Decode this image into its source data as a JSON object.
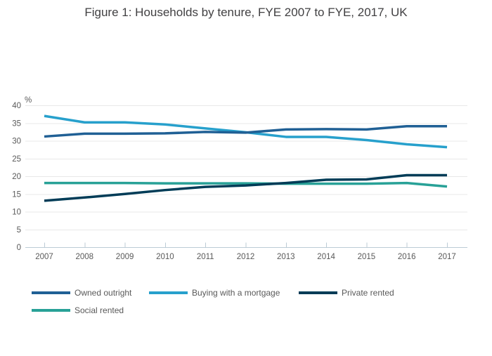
{
  "theme": {
    "background": "#FFFFFF",
    "title_text": "#414042",
    "tick_text": "#595959",
    "legend_text": "#595959",
    "axis_line": "#BCCBD5",
    "grid_line": "#E8E8E8"
  },
  "chart_data": {
    "type": "line",
    "title": "Figure 1: Households by tenure, FYE 2007 to FYE, 2017, UK",
    "xlabel": "",
    "ylabel": "%",
    "x": [
      2007,
      2008,
      2009,
      2010,
      2011,
      2012,
      2013,
      2014,
      2015,
      2016,
      2017
    ],
    "yticks": [
      0,
      5,
      10,
      15,
      20,
      25,
      30,
      35,
      40
    ],
    "ylim": [
      0,
      40
    ],
    "grid": true,
    "legend_position": "bottom-left",
    "draw_order": [
      1,
      0,
      3,
      2
    ],
    "series": [
      {
        "name": "Owned outright",
        "color": "#206095",
        "values": [
          31.2,
          32.0,
          32.0,
          32.1,
          32.5,
          32.3,
          33.2,
          33.3,
          33.2,
          34.1,
          34.1
        ]
      },
      {
        "name": "Buying with a mortgage",
        "color": "#27A0CC",
        "values": [
          37.0,
          35.2,
          35.2,
          34.6,
          33.5,
          32.4,
          31.1,
          31.1,
          30.2,
          29.0,
          28.2
        ]
      },
      {
        "name": "Private rented",
        "color": "#003C57",
        "values": [
          13.1,
          14.0,
          15.0,
          16.1,
          17.0,
          17.4,
          18.1,
          19.0,
          19.1,
          20.3,
          20.3
        ]
      },
      {
        "name": "Social rented",
        "color": "#28A197",
        "values": [
          18.1,
          18.1,
          18.1,
          18.0,
          18.0,
          18.0,
          17.9,
          17.9,
          17.9,
          18.1,
          17.1
        ]
      }
    ]
  }
}
